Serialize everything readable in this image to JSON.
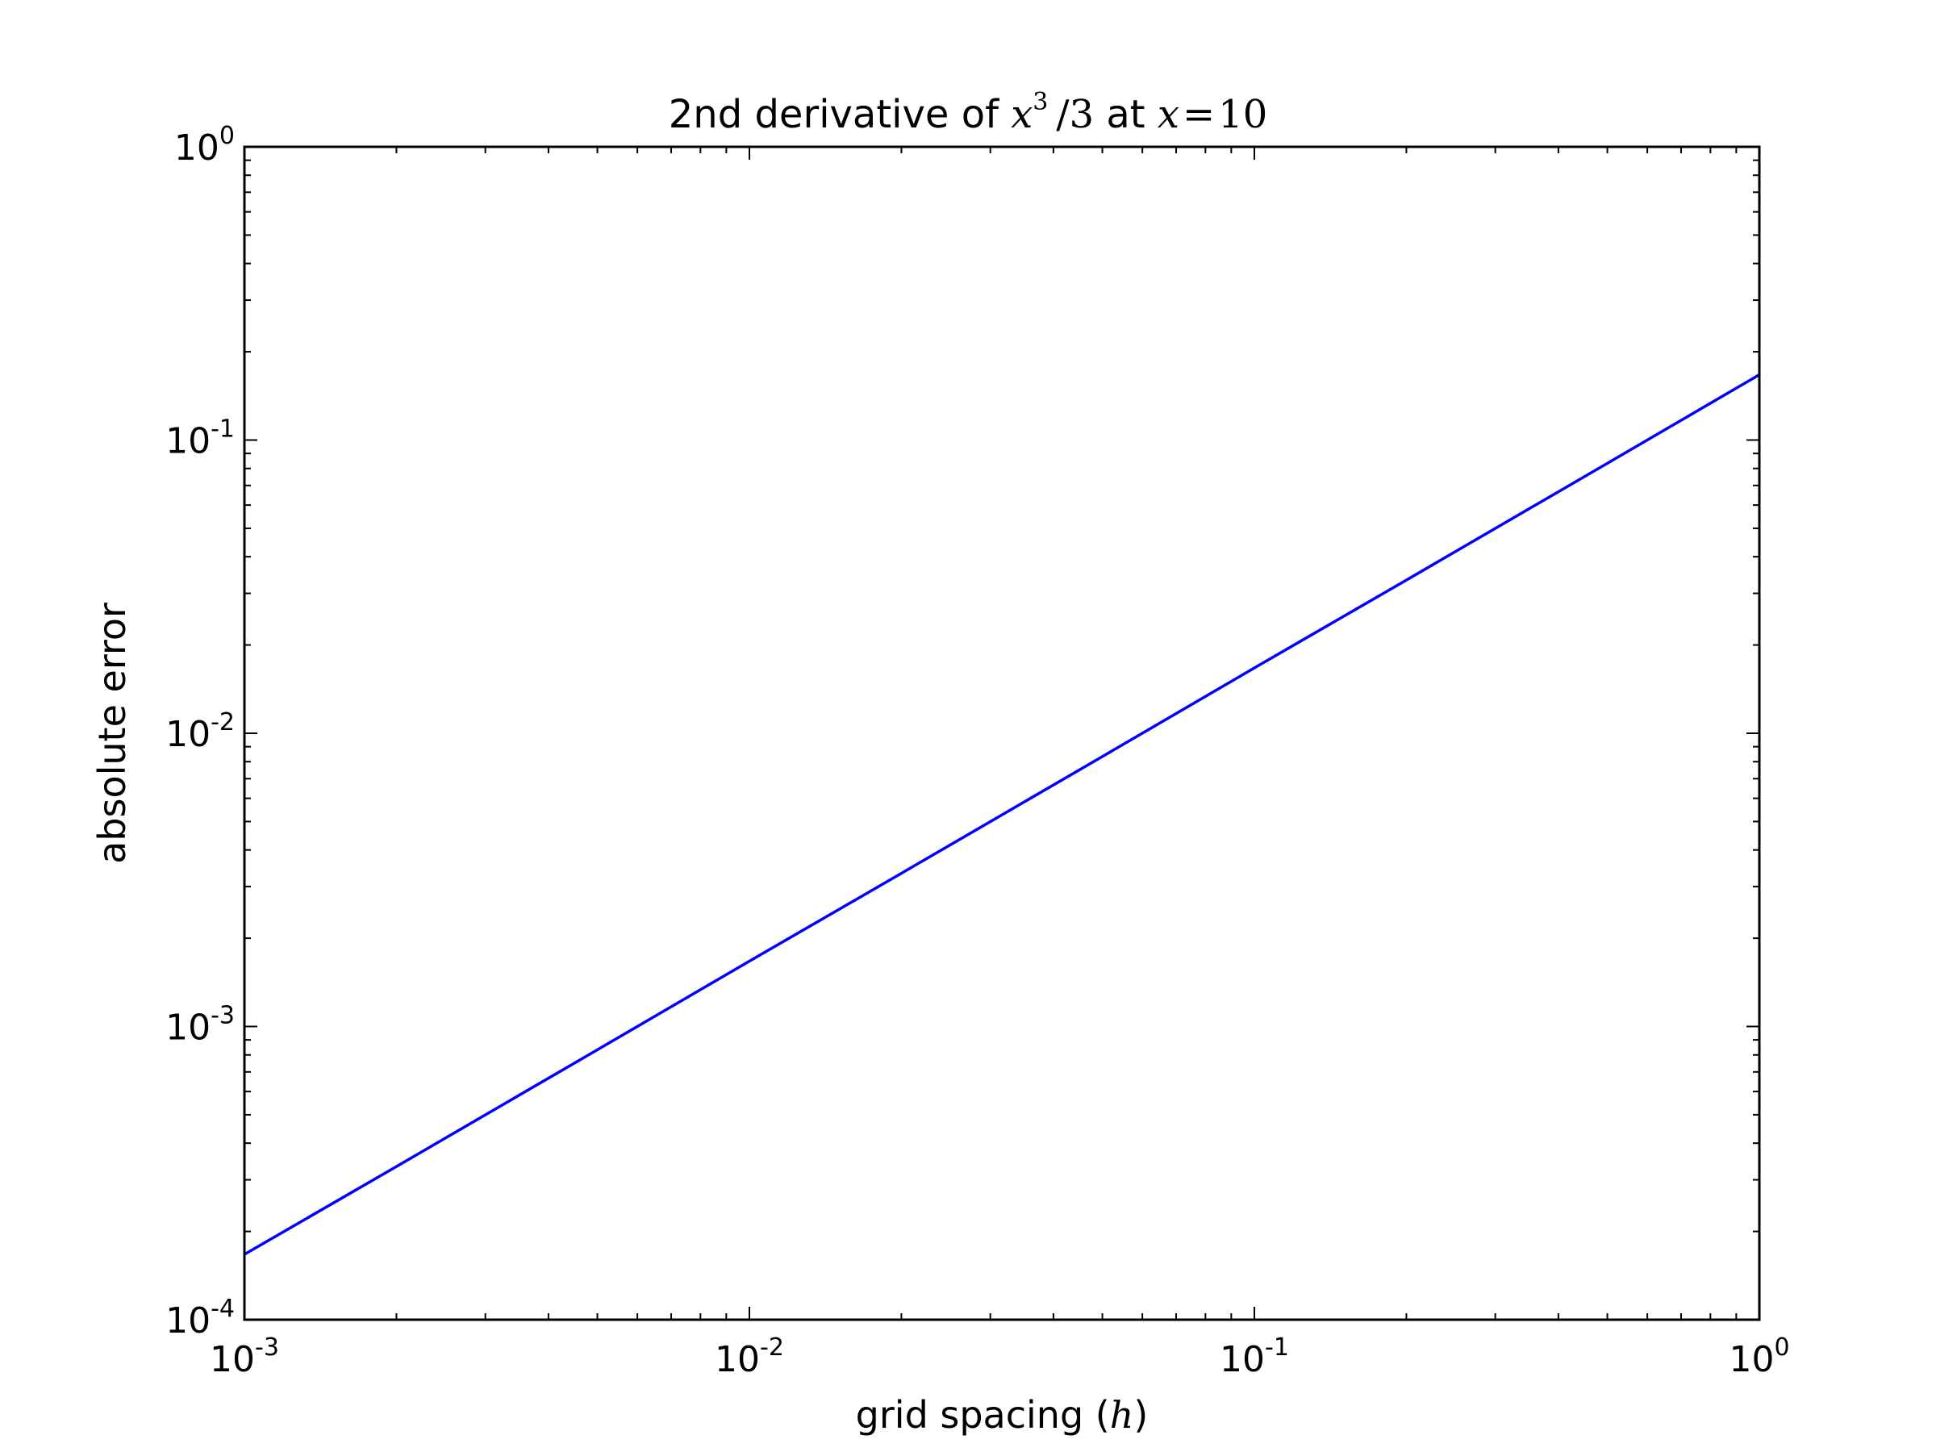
{
  "chart_data": {
    "type": "line",
    "title": {
      "prefix": "2nd derivative of ",
      "var": "x",
      "power": "3",
      "divisor": "/3",
      "middle": " at ",
      "lhs": "x",
      "eq": "=",
      "rhs": "10"
    },
    "xlabel": {
      "text": "grid spacing (",
      "var": "h",
      "close": ")"
    },
    "ylabel": "absolute error",
    "xscale": "log",
    "yscale": "log",
    "xlim": [
      0.001,
      1
    ],
    "ylim": [
      0.0001,
      1
    ],
    "x_ticks": [
      {
        "base": "10",
        "exp": "-3",
        "value": 0.001
      },
      {
        "base": "10",
        "exp": "-2",
        "value": 0.01
      },
      {
        "base": "10",
        "exp": "-1",
        "value": 0.1
      },
      {
        "base": "10",
        "exp": "0",
        "value": 1
      }
    ],
    "y_ticks": [
      {
        "base": "10",
        "exp": "-4",
        "value": 0.0001
      },
      {
        "base": "10",
        "exp": "-3",
        "value": 0.001
      },
      {
        "base": "10",
        "exp": "-2",
        "value": 0.01
      },
      {
        "base": "10",
        "exp": "-1",
        "value": 0.1
      },
      {
        "base": "10",
        "exp": "0",
        "value": 1
      }
    ],
    "grid": false,
    "series": [
      {
        "color": "#0000ff",
        "x": [
          0.001,
          0.002,
          0.005,
          0.01,
          0.02,
          0.05,
          0.1,
          0.2,
          0.5,
          1
        ],
        "y": [
          0.000167,
          0.000333,
          0.000833,
          0.00167,
          0.00333,
          0.00833,
          0.0167,
          0.0333,
          0.0833,
          0.167
        ]
      }
    ]
  }
}
